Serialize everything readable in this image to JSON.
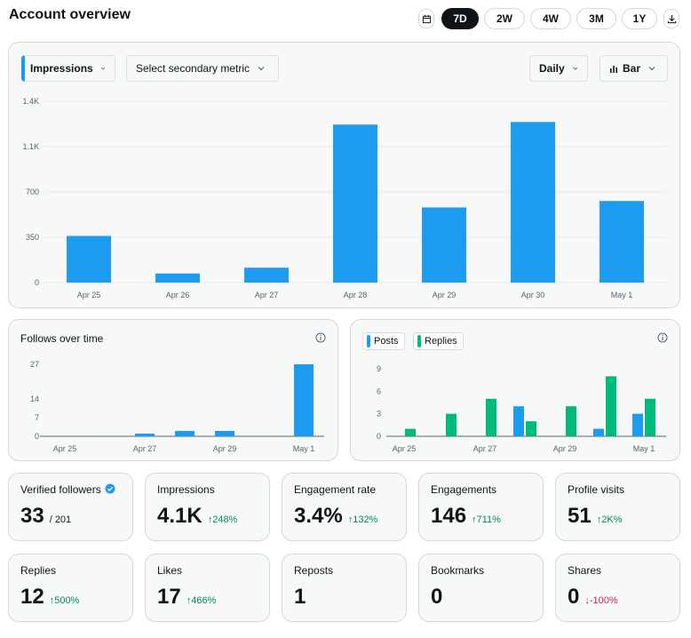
{
  "header": {
    "title": "Account overview",
    "ranges": [
      "7D",
      "2W",
      "4W",
      "3M",
      "1Y"
    ],
    "active_range": "7D"
  },
  "main_chart": {
    "primary_metric": "Impressions",
    "secondary_placeholder": "Select secondary metric",
    "interval": "Daily",
    "chart_type": "Bar"
  },
  "follows_card": {
    "title": "Follows over time"
  },
  "posts_card": {
    "legend_posts": "Posts",
    "legend_replies": "Replies"
  },
  "colors": {
    "blue": "#1d9bf0",
    "green": "#00ba7c",
    "dark": "#0f1419"
  },
  "stats": [
    {
      "label": "Verified followers",
      "value": "33",
      "suffix": "/ 201",
      "delta": "",
      "dir": ""
    },
    {
      "label": "Impressions",
      "value": "4.1K",
      "suffix": "",
      "delta": "↑248%",
      "dir": "up"
    },
    {
      "label": "Engagement rate",
      "value": "3.4%",
      "suffix": "",
      "delta": "↑132%",
      "dir": "up"
    },
    {
      "label": "Engagements",
      "value": "146",
      "suffix": "",
      "delta": "↑711%",
      "dir": "up"
    },
    {
      "label": "Profile visits",
      "value": "51",
      "suffix": "",
      "delta": "↑2K%",
      "dir": "up"
    },
    {
      "label": "Replies",
      "value": "12",
      "suffix": "",
      "delta": "↑500%",
      "dir": "up"
    },
    {
      "label": "Likes",
      "value": "17",
      "suffix": "",
      "delta": "↑466%",
      "dir": "up"
    },
    {
      "label": "Reposts",
      "value": "1",
      "suffix": "",
      "delta": "",
      "dir": ""
    },
    {
      "label": "Bookmarks",
      "value": "0",
      "suffix": "",
      "delta": "",
      "dir": ""
    },
    {
      "label": "Shares",
      "value": "0",
      "suffix": "",
      "delta": "↓-100%",
      "dir": "down"
    }
  ],
  "chart_data": [
    {
      "type": "bar",
      "categories": [
        "Apr 25",
        "Apr 26",
        "Apr 27",
        "Apr 28",
        "Apr 29",
        "Apr 30",
        "May 1"
      ],
      "series": [
        {
          "name": "Impressions",
          "values": [
            360,
            70,
            115,
            1220,
            580,
            1240,
            630
          ]
        }
      ],
      "yticks": [
        "0",
        "350",
        "700",
        "1.1K",
        "1.4K"
      ],
      "ylim": [
        0,
        1400
      ]
    },
    {
      "type": "bar",
      "title": "Follows over time",
      "categories": [
        "Apr 25",
        "Apr 26",
        "Apr 27",
        "Apr 28",
        "Apr 29",
        "Apr 30",
        "May 1"
      ],
      "xticks": [
        "Apr 25",
        "Apr 27",
        "Apr 29",
        "May 1"
      ],
      "values": [
        0,
        0,
        1,
        2,
        2,
        0,
        27
      ],
      "yticks": [
        "0",
        "7",
        "14",
        "27"
      ],
      "ylim": [
        0,
        27
      ]
    },
    {
      "type": "bar",
      "categories": [
        "Apr 25",
        "Apr 26",
        "Apr 27",
        "Apr 28",
        "Apr 29",
        "Apr 30",
        "May 1"
      ],
      "xticks": [
        "Apr 25",
        "Apr 27",
        "Apr 29",
        "May 1"
      ],
      "series": [
        {
          "name": "Posts",
          "values": [
            0,
            0,
            0,
            4,
            0,
            1,
            3
          ]
        },
        {
          "name": "Replies",
          "values": [
            1,
            3,
            5,
            2,
            4,
            8,
            5
          ]
        }
      ],
      "yticks": [
        "0",
        "3",
        "6",
        "9"
      ],
      "ylim": [
        0,
        9
      ]
    }
  ]
}
